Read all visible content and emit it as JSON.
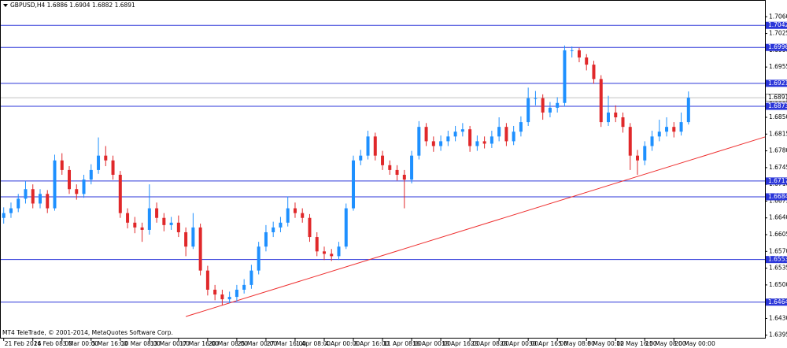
{
  "chart_data": {
    "type": "candlestick",
    "title": "GBPUSD,H4  1.6886 1.6904 1.6882 1.6891",
    "footer": "MT4 TeleTrade, © 2001-2014, MetaQuotes Software Corp.",
    "up_color": "#1e90ff",
    "down_color": "#e0282a",
    "level_color": "#2b36d9",
    "trend_color": "#ee3030",
    "xlim": [
      -0.4,
      104.5
    ],
    "ylim": [
      1.6388,
      1.7095
    ],
    "ohlc": [
      [
        1.664,
        1.6662,
        1.6628,
        1.665
      ],
      [
        1.665,
        1.6672,
        1.664,
        1.666
      ],
      [
        1.666,
        1.669,
        1.6652,
        1.668
      ],
      [
        1.668,
        1.6717,
        1.667,
        1.67
      ],
      [
        1.67,
        1.671,
        1.666,
        1.667
      ],
      [
        1.667,
        1.67,
        1.666,
        1.669
      ],
      [
        1.669,
        1.6698,
        1.665,
        1.666
      ],
      [
        1.666,
        1.6772,
        1.6655,
        1.676
      ],
      [
        1.676,
        1.6775,
        1.673,
        1.674
      ],
      [
        1.674,
        1.6748,
        1.669,
        1.67
      ],
      [
        1.67,
        1.671,
        1.6678,
        1.669
      ],
      [
        1.669,
        1.673,
        1.6682,
        1.672
      ],
      [
        1.672,
        1.6752,
        1.671,
        1.674
      ],
      [
        1.674,
        1.6808,
        1.6732,
        1.677
      ],
      [
        1.677,
        1.679,
        1.6748,
        1.676
      ],
      [
        1.676,
        1.677,
        1.672,
        1.673
      ],
      [
        1.673,
        1.6738,
        1.664,
        1.665
      ],
      [
        1.665,
        1.666,
        1.6618,
        1.663
      ],
      [
        1.663,
        1.6642,
        1.6608,
        1.662
      ],
      [
        1.662,
        1.663,
        1.659,
        1.6615
      ],
      [
        1.6615,
        1.671,
        1.6605,
        1.666
      ],
      [
        1.666,
        1.6672,
        1.663,
        1.664
      ],
      [
        1.664,
        1.665,
        1.6612,
        1.6625
      ],
      [
        1.6625,
        1.6642,
        1.6615,
        1.663
      ],
      [
        1.663,
        1.6645,
        1.66,
        1.661
      ],
      [
        1.661,
        1.662,
        1.656,
        1.658
      ],
      [
        1.658,
        1.665,
        1.6575,
        1.662
      ],
      [
        1.662,
        1.6628,
        1.652,
        1.653
      ],
      [
        1.653,
        1.654,
        1.6478,
        1.649
      ],
      [
        1.649,
        1.65,
        1.6468,
        1.648
      ],
      [
        1.648,
        1.649,
        1.6458,
        1.647
      ],
      [
        1.647,
        1.6486,
        1.6462,
        1.6475
      ],
      [
        1.6475,
        1.65,
        1.6466,
        1.649
      ],
      [
        1.649,
        1.6512,
        1.6482,
        1.65
      ],
      [
        1.65,
        1.6542,
        1.6492,
        1.653
      ],
      [
        1.653,
        1.659,
        1.6522,
        1.658
      ],
      [
        1.658,
        1.6625,
        1.657,
        1.661
      ],
      [
        1.661,
        1.6632,
        1.66,
        1.662
      ],
      [
        1.662,
        1.6642,
        1.661,
        1.663
      ],
      [
        1.663,
        1.6685,
        1.6622,
        1.666
      ],
      [
        1.666,
        1.6672,
        1.664,
        1.665
      ],
      [
        1.665,
        1.666,
        1.663,
        1.664
      ],
      [
        1.664,
        1.6648,
        1.659,
        1.66
      ],
      [
        1.66,
        1.661,
        1.656,
        1.657
      ],
      [
        1.657,
        1.658,
        1.6552,
        1.6565
      ],
      [
        1.6565,
        1.6575,
        1.655,
        1.656
      ],
      [
        1.656,
        1.659,
        1.6552,
        1.658
      ],
      [
        1.658,
        1.667,
        1.6575,
        1.666
      ],
      [
        1.666,
        1.677,
        1.6655,
        1.676
      ],
      [
        1.676,
        1.6782,
        1.675,
        1.677
      ],
      [
        1.677,
        1.6822,
        1.6762,
        1.681
      ],
      [
        1.681,
        1.6818,
        1.676,
        1.677
      ],
      [
        1.677,
        1.678,
        1.674,
        1.675
      ],
      [
        1.675,
        1.676,
        1.673,
        1.674
      ],
      [
        1.674,
        1.675,
        1.6718,
        1.673
      ],
      [
        1.673,
        1.674,
        1.666,
        1.672
      ],
      [
        1.672,
        1.678,
        1.6712,
        1.677
      ],
      [
        1.677,
        1.6842,
        1.6762,
        1.683
      ],
      [
        1.683,
        1.6838,
        1.679,
        1.68
      ],
      [
        1.68,
        1.681,
        1.6778,
        1.679
      ],
      [
        1.679,
        1.6812,
        1.678,
        1.68
      ],
      [
        1.68,
        1.6822,
        1.679,
        1.681
      ],
      [
        1.681,
        1.6832,
        1.68,
        1.682
      ],
      [
        1.682,
        1.6838,
        1.681,
        1.6825
      ],
      [
        1.6825,
        1.6832,
        1.6778,
        1.679
      ],
      [
        1.679,
        1.6812,
        1.678,
        1.68
      ],
      [
        1.68,
        1.681,
        1.6785,
        1.6795
      ],
      [
        1.6795,
        1.6822,
        1.6786,
        1.681
      ],
      [
        1.681,
        1.685,
        1.68,
        1.683
      ],
      [
        1.683,
        1.6838,
        1.679,
        1.68
      ],
      [
        1.68,
        1.6832,
        1.6792,
        1.682
      ],
      [
        1.682,
        1.6852,
        1.681,
        1.684
      ],
      [
        1.684,
        1.6912,
        1.6832,
        1.689
      ],
      [
        1.689,
        1.6905,
        1.6875,
        1.689
      ],
      [
        1.689,
        1.6898,
        1.6845,
        1.686
      ],
      [
        1.686,
        1.6882,
        1.685,
        1.687
      ],
      [
        1.687,
        1.6892,
        1.686,
        1.688
      ],
      [
        1.688,
        1.7,
        1.6872,
        1.699
      ],
      [
        1.699,
        1.6998,
        1.6975,
        1.699
      ],
      [
        1.699,
        1.6995,
        1.6965,
        1.6975
      ],
      [
        1.6975,
        1.6982,
        1.6948,
        1.696
      ],
      [
        1.696,
        1.6968,
        1.692,
        1.693
      ],
      [
        1.693,
        1.6938,
        1.683,
        1.684
      ],
      [
        1.684,
        1.6895,
        1.6832,
        1.686
      ],
      [
        1.686,
        1.6875,
        1.684,
        1.685
      ],
      [
        1.685,
        1.686,
        1.6818,
        1.683
      ],
      [
        1.683,
        1.6838,
        1.674,
        1.677
      ],
      [
        1.677,
        1.6782,
        1.673,
        1.676
      ],
      [
        1.676,
        1.68,
        1.675,
        1.679
      ],
      [
        1.679,
        1.6822,
        1.678,
        1.681
      ],
      [
        1.681,
        1.6845,
        1.68,
        1.682
      ],
      [
        1.682,
        1.685,
        1.681,
        1.683
      ],
      [
        1.683,
        1.684,
        1.6808,
        1.682
      ],
      [
        1.682,
        1.686,
        1.6812,
        1.684
      ],
      [
        1.684,
        1.6904,
        1.6835,
        1.6891
      ]
    ],
    "levels": [
      1.7042,
      1.6996,
      1.6921,
      1.6873,
      1.6717,
      1.6684,
      1.6553,
      1.6464
    ],
    "current_price": 1.6891,
    "trendline": {
      "x": [
        25,
        104.5
      ],
      "y": [
        1.6434,
        1.6809
      ]
    },
    "yticks": [
      1.6395,
      {
        "value": 1.643,
        "label": "1.6430"
      },
      1.6465,
      {
        "value": 1.65,
        "label": "1.6500"
      },
      1.6535,
      {
        "value": 1.657,
        "label": "1.6570"
      },
      1.6605,
      {
        "value": 1.664,
        "label": "1.6640"
      },
      1.6675,
      {
        "value": 1.671,
        "label": "1.6710"
      },
      1.6745,
      {
        "value": 1.678,
        "label": "1.6780"
      },
      1.6815,
      {
        "value": 1.685,
        "label": "1.6850"
      },
      1.6885,
      {
        "value": 1.692,
        "label": "1.6920"
      },
      1.6955,
      {
        "value": 1.699,
        "label": "1.6990"
      },
      1.7025,
      {
        "value": 1.706,
        "label": "1.7060"
      }
    ],
    "xticks": [
      {
        "value": 0,
        "label": "21 Feb 2014"
      },
      {
        "value": 4,
        "label": "26 Feb 08:00"
      },
      {
        "value": 8,
        "label": "3 Mar 00:00"
      },
      {
        "value": 12,
        "label": "5 Mar 16:00"
      },
      {
        "value": 16,
        "label": "10 Mar 08:00"
      },
      {
        "value": 20,
        "label": "13 Mar 00:00"
      },
      {
        "value": 24,
        "label": "17 Mar 16:00"
      },
      {
        "value": 28,
        "label": "20 Mar 08:00"
      },
      {
        "value": 32,
        "label": "25 Mar 00:00"
      },
      {
        "value": 36,
        "label": "27 Mar 16:00"
      },
      {
        "value": 40,
        "label": "1 Apr 08:00"
      },
      {
        "value": 44,
        "label": "4 Apr 00:00"
      },
      {
        "value": 48,
        "label": "8 Apr 16:00"
      },
      {
        "value": 52,
        "label": "11 Apr 08:00"
      },
      {
        "value": 56,
        "label": "16 Apr 00:00"
      },
      {
        "value": 60,
        "label": "18 Apr 16:00"
      },
      {
        "value": 64,
        "label": "23 Apr 08:00"
      },
      {
        "value": 68,
        "label": "28 Apr 00:00"
      },
      {
        "value": 72,
        "label": "30 Apr 16:00"
      },
      {
        "value": 76,
        "label": "5 May 08:00"
      },
      {
        "value": 80,
        "label": "8 May 00:00"
      },
      {
        "value": 84,
        "label": "12 May 16:00"
      },
      {
        "value": 88,
        "label": "15 May 08:00"
      },
      {
        "value": 92,
        "label": "20 May 00:00"
      }
    ]
  }
}
